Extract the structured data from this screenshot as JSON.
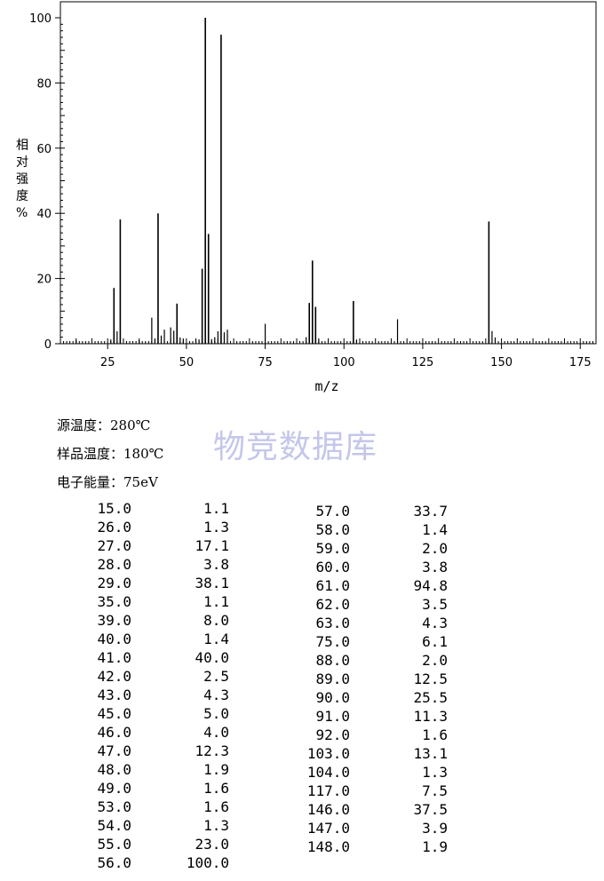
{
  "chart_data": {
    "type": "bar",
    "ylabel": "相对强度%",
    "xlabel": "m/z",
    "xlim": [
      10,
      180
    ],
    "ylim": [
      0,
      100
    ],
    "x_ticks": [
      25,
      50,
      75,
      100,
      125,
      150,
      175
    ],
    "y_ticks": [
      0,
      20,
      40,
      60,
      80,
      100
    ],
    "grid": false,
    "peaks": [
      {
        "mz": 15.0,
        "intensity": 1.1
      },
      {
        "mz": 26.0,
        "intensity": 1.3
      },
      {
        "mz": 27.0,
        "intensity": 17.1
      },
      {
        "mz": 28.0,
        "intensity": 3.8
      },
      {
        "mz": 29.0,
        "intensity": 38.1
      },
      {
        "mz": 35.0,
        "intensity": 1.1
      },
      {
        "mz": 39.0,
        "intensity": 8.0
      },
      {
        "mz": 40.0,
        "intensity": 1.4
      },
      {
        "mz": 41.0,
        "intensity": 40.0
      },
      {
        "mz": 42.0,
        "intensity": 2.5
      },
      {
        "mz": 43.0,
        "intensity": 4.3
      },
      {
        "mz": 45.0,
        "intensity": 5.0
      },
      {
        "mz": 46.0,
        "intensity": 4.0
      },
      {
        "mz": 47.0,
        "intensity": 12.3
      },
      {
        "mz": 48.0,
        "intensity": 1.9
      },
      {
        "mz": 49.0,
        "intensity": 1.6
      },
      {
        "mz": 53.0,
        "intensity": 1.6
      },
      {
        "mz": 54.0,
        "intensity": 1.3
      },
      {
        "mz": 55.0,
        "intensity": 23.0
      },
      {
        "mz": 56.0,
        "intensity": 100.0
      },
      {
        "mz": 57.0,
        "intensity": 33.7
      },
      {
        "mz": 58.0,
        "intensity": 1.4
      },
      {
        "mz": 59.0,
        "intensity": 2.0
      },
      {
        "mz": 60.0,
        "intensity": 3.8
      },
      {
        "mz": 61.0,
        "intensity": 94.8
      },
      {
        "mz": 62.0,
        "intensity": 3.5
      },
      {
        "mz": 63.0,
        "intensity": 4.3
      },
      {
        "mz": 75.0,
        "intensity": 6.1
      },
      {
        "mz": 88.0,
        "intensity": 2.0
      },
      {
        "mz": 89.0,
        "intensity": 12.5
      },
      {
        "mz": 90.0,
        "intensity": 25.5
      },
      {
        "mz": 91.0,
        "intensity": 11.3
      },
      {
        "mz": 92.0,
        "intensity": 1.6
      },
      {
        "mz": 103.0,
        "intensity": 13.1
      },
      {
        "mz": 104.0,
        "intensity": 1.3
      },
      {
        "mz": 117.0,
        "intensity": 7.5
      },
      {
        "mz": 146.0,
        "intensity": 37.5
      },
      {
        "mz": 147.0,
        "intensity": 3.9
      },
      {
        "mz": 148.0,
        "intensity": 1.9
      }
    ]
  },
  "conditions": {
    "source_temp": "源温度：280℃",
    "sample_temp": "样品温度：180℃",
    "electron_energy": "电子能量：75eV"
  },
  "watermark": "物竞数据库",
  "table": {
    "left": [
      [
        "15.0",
        "1.1"
      ],
      [
        "26.0",
        "1.3"
      ],
      [
        "27.0",
        "17.1"
      ],
      [
        "28.0",
        "3.8"
      ],
      [
        "29.0",
        "38.1"
      ],
      [
        "35.0",
        "1.1"
      ],
      [
        "39.0",
        "8.0"
      ],
      [
        "40.0",
        "1.4"
      ],
      [
        "41.0",
        "40.0"
      ],
      [
        "42.0",
        "2.5"
      ],
      [
        "43.0",
        "4.3"
      ],
      [
        "45.0",
        "5.0"
      ],
      [
        "46.0",
        "4.0"
      ],
      [
        "47.0",
        "12.3"
      ],
      [
        "48.0",
        "1.9"
      ],
      [
        "49.0",
        "1.6"
      ],
      [
        "53.0",
        "1.6"
      ],
      [
        "54.0",
        "1.3"
      ],
      [
        "55.0",
        "23.0"
      ],
      [
        "56.0",
        "100.0"
      ]
    ],
    "right": [
      [
        "57.0",
        "33.7"
      ],
      [
        "58.0",
        "1.4"
      ],
      [
        "59.0",
        "2.0"
      ],
      [
        "60.0",
        "3.8"
      ],
      [
        "61.0",
        "94.8"
      ],
      [
        "62.0",
        "3.5"
      ],
      [
        "63.0",
        "4.3"
      ],
      [
        "75.0",
        "6.1"
      ],
      [
        "88.0",
        "2.0"
      ],
      [
        "89.0",
        "12.5"
      ],
      [
        "90.0",
        "25.5"
      ],
      [
        "91.0",
        "11.3"
      ],
      [
        "92.0",
        "1.6"
      ],
      [
        "103.0",
        "13.1"
      ],
      [
        "104.0",
        "1.3"
      ],
      [
        "117.0",
        "7.5"
      ],
      [
        "146.0",
        "37.5"
      ],
      [
        "147.0",
        "3.9"
      ],
      [
        "148.0",
        "1.9"
      ]
    ]
  }
}
